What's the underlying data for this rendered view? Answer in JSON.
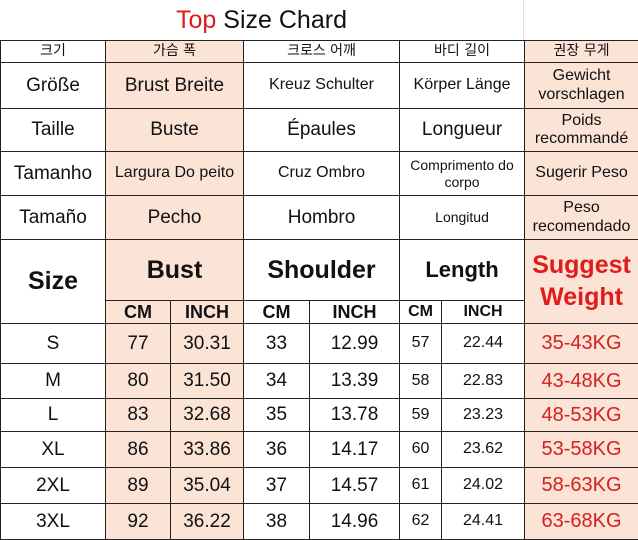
{
  "title": {
    "highlight": "Top",
    "rest": "Size Chard"
  },
  "colors": {
    "pink": "#fbe3d6",
    "red": "#e01b1b"
  },
  "languages": [
    {
      "size": "크기",
      "bust": "가슴 폭",
      "shoulder": "크로스 어깨",
      "length": "바디 길이",
      "weight": "권장 무게"
    },
    {
      "size": "Größe",
      "bust": "Brust Breite",
      "shoulder": "Kreuz Schulter",
      "length": "Körper Länge",
      "weight": "Gewicht vorschlagen"
    },
    {
      "size": "Taille",
      "bust": "Buste",
      "shoulder": "Épaules",
      "length": "Longueur",
      "weight": "Poids recommandé"
    },
    {
      "size": "Tamanho",
      "bust": "Largura Do peito",
      "shoulder": "Cruz Ombro",
      "length": "Comprimento do corpo",
      "weight": "Sugerir Peso"
    },
    {
      "size": "Tamaño",
      "bust": "Pecho",
      "shoulder": "Hombro",
      "length": "Longitud",
      "weight": "Peso recomendado"
    }
  ],
  "header": {
    "size": "Size",
    "bust": "Bust",
    "shoulder": "Shoulder",
    "length": "Length",
    "weight": "Suggest Weight",
    "cm": "CM",
    "inch": "INCH"
  },
  "rows": [
    {
      "size": "S",
      "bust_cm": "77",
      "bust_inch": "30.31",
      "shoulder_cm": "33",
      "shoulder_inch": "12.99",
      "length_cm": "57",
      "length_inch": "22.44",
      "weight": "35-43KG"
    },
    {
      "size": "M",
      "bust_cm": "80",
      "bust_inch": "31.50",
      "shoulder_cm": "34",
      "shoulder_inch": "13.39",
      "length_cm": "58",
      "length_inch": "22.83",
      "weight": "43-48KG"
    },
    {
      "size": "L",
      "bust_cm": "83",
      "bust_inch": "32.68",
      "shoulder_cm": "35",
      "shoulder_inch": "13.78",
      "length_cm": "59",
      "length_inch": "23.23",
      "weight": "48-53KG"
    },
    {
      "size": "XL",
      "bust_cm": "86",
      "bust_inch": "33.86",
      "shoulder_cm": "36",
      "shoulder_inch": "14.17",
      "length_cm": "60",
      "length_inch": "23.62",
      "weight": "53-58KG"
    },
    {
      "size": "2XL",
      "bust_cm": "89",
      "bust_inch": "35.04",
      "shoulder_cm": "37",
      "shoulder_inch": "14.57",
      "length_cm": "61",
      "length_inch": "24.02",
      "weight": "58-63KG"
    },
    {
      "size": "3XL",
      "bust_cm": "92",
      "bust_inch": "36.22",
      "shoulder_cm": "38",
      "shoulder_inch": "14.96",
      "length_cm": "62",
      "length_inch": "24.41",
      "weight": "63-68KG"
    }
  ]
}
